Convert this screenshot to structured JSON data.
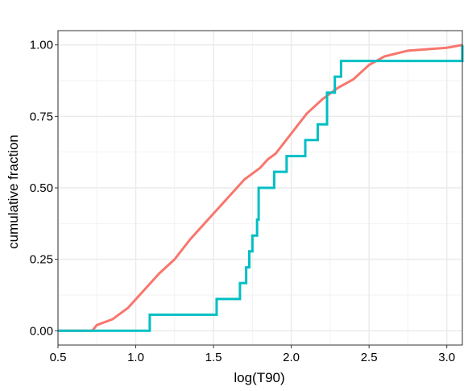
{
  "chart_data": {
    "type": "line",
    "title": "",
    "xlabel": "log(T90)",
    "ylabel": "cumulative fraction",
    "xlim": [
      0.5,
      3.1
    ],
    "ylim": [
      -0.05,
      1.05
    ],
    "grid": true,
    "xticks": [
      0.5,
      1.0,
      1.5,
      2.0,
      2.5,
      3.0
    ],
    "xtick_labels": [
      "0.5",
      "1.0",
      "1.5",
      "2.0",
      "2.5",
      "3.0"
    ],
    "yticks": [
      0.0,
      0.25,
      0.5,
      0.75,
      1.0
    ],
    "ytick_labels": [
      "0.00",
      "0.25",
      "0.50",
      "0.75",
      "1.00"
    ],
    "colors": [
      "#F8766D",
      "#00BFC4"
    ],
    "series": [
      {
        "step": false,
        "x": [
          0.5,
          0.72,
          0.75,
          0.85,
          0.95,
          1.05,
          1.15,
          1.25,
          1.35,
          1.45,
          1.55,
          1.65,
          1.7,
          1.75,
          1.8,
          1.85,
          1.9,
          2.0,
          2.1,
          2.2,
          2.3,
          2.4,
          2.5,
          2.6,
          2.75,
          3.0,
          3.1
        ],
        "y": [
          0.0,
          0.0,
          0.02,
          0.04,
          0.08,
          0.14,
          0.2,
          0.25,
          0.32,
          0.38,
          0.44,
          0.5,
          0.53,
          0.55,
          0.57,
          0.6,
          0.62,
          0.69,
          0.76,
          0.81,
          0.85,
          0.88,
          0.93,
          0.96,
          0.98,
          0.99,
          1.0
        ]
      },
      {
        "step": true,
        "x": [
          0.5,
          1.09,
          1.52,
          1.67,
          1.71,
          1.73,
          1.75,
          1.78,
          1.79,
          1.89,
          1.97,
          2.09,
          2.17,
          2.23,
          2.28,
          2.32,
          3.1
        ],
        "y": [
          0.0,
          0.056,
          0.111,
          0.167,
          0.222,
          0.278,
          0.333,
          0.389,
          0.5,
          0.556,
          0.611,
          0.667,
          0.722,
          0.833,
          0.889,
          0.944,
          1.0
        ]
      }
    ]
  }
}
